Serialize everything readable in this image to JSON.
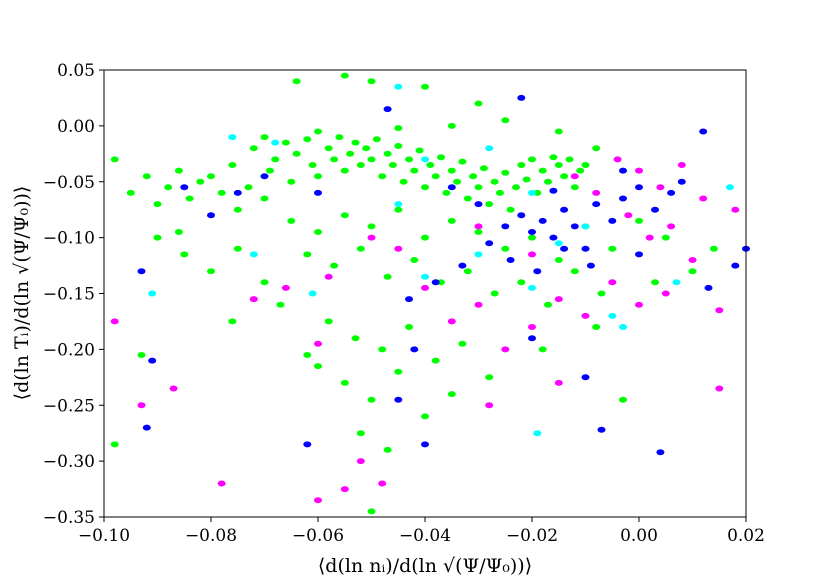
{
  "chart_data": {
    "type": "scatter",
    "title": "",
    "xlabel": "⟨d(ln nᵢ)/d(ln √(Ψ/Ψ₀))⟩",
    "ylabel": "⟨d(ln Tᵢ)/d(ln √(Ψ/Ψ₀))⟩",
    "xlim": [
      -0.1,
      0.02
    ],
    "ylim": [
      -0.35,
      0.05
    ],
    "x_ticks": [
      "−0.10",
      "−0.08",
      "−0.06",
      "−0.04",
      "−0.02",
      "0.00",
      "0.02"
    ],
    "y_ticks": [
      "0.05",
      "0.00",
      "−0.05",
      "−0.10",
      "−0.15",
      "−0.20",
      "−0.25",
      "−0.30",
      "−0.35"
    ],
    "x_tick_values": [
      -0.1,
      -0.08,
      -0.06,
      -0.04,
      -0.02,
      0.0,
      0.02
    ],
    "y_tick_values": [
      0.05,
      0.0,
      -0.05,
      -0.1,
      -0.15,
      -0.2,
      -0.25,
      -0.3,
      -0.35
    ],
    "grid": false,
    "legend": "none",
    "marker": "hexbin-cell",
    "series": [
      {
        "color": "#00ff00",
        "points": [
          [
            -0.098,
            -0.03
          ],
          [
            -0.095,
            -0.06
          ],
          [
            -0.092,
            -0.045
          ],
          [
            -0.09,
            -0.07
          ],
          [
            -0.088,
            -0.055
          ],
          [
            -0.086,
            -0.04
          ],
          [
            -0.084,
            -0.065
          ],
          [
            -0.082,
            -0.05
          ],
          [
            -0.08,
            -0.045
          ],
          [
            -0.078,
            -0.06
          ],
          [
            -0.076,
            -0.035
          ],
          [
            -0.075,
            -0.075
          ],
          [
            -0.073,
            -0.055
          ],
          [
            -0.072,
            -0.02
          ],
          [
            -0.07,
            -0.065
          ],
          [
            -0.069,
            -0.04
          ],
          [
            -0.068,
            -0.03
          ],
          [
            -0.066,
            -0.015
          ],
          [
            -0.065,
            -0.05
          ],
          [
            -0.064,
            -0.025
          ],
          [
            -0.062,
            -0.012
          ],
          [
            -0.061,
            -0.035
          ],
          [
            -0.06,
            -0.045
          ],
          [
            -0.058,
            -0.02
          ],
          [
            -0.057,
            -0.03
          ],
          [
            -0.056,
            -0.01
          ],
          [
            -0.055,
            -0.04
          ],
          [
            -0.054,
            -0.025
          ],
          [
            -0.053,
            -0.015
          ],
          [
            -0.052,
            -0.035
          ],
          [
            -0.051,
            -0.02
          ],
          [
            -0.05,
            -0.03
          ],
          [
            -0.049,
            -0.012
          ],
          [
            -0.048,
            -0.045
          ],
          [
            -0.047,
            -0.025
          ],
          [
            -0.046,
            -0.035
          ],
          [
            -0.045,
            -0.018
          ],
          [
            -0.044,
            -0.05
          ],
          [
            -0.043,
            -0.03
          ],
          [
            -0.042,
            -0.04
          ],
          [
            -0.041,
            -0.022
          ],
          [
            -0.04,
            -0.055
          ],
          [
            -0.039,
            -0.035
          ],
          [
            -0.038,
            -0.045
          ],
          [
            -0.037,
            -0.028
          ],
          [
            -0.036,
            -0.06
          ],
          [
            -0.035,
            -0.04
          ],
          [
            -0.034,
            -0.05
          ],
          [
            -0.033,
            -0.032
          ],
          [
            -0.032,
            -0.065
          ],
          [
            -0.031,
            -0.045
          ],
          [
            -0.03,
            -0.055
          ],
          [
            -0.029,
            -0.038
          ],
          [
            -0.028,
            -0.07
          ],
          [
            -0.027,
            -0.05
          ],
          [
            -0.026,
            -0.06
          ],
          [
            -0.025,
            -0.042
          ],
          [
            -0.024,
            -0.075
          ],
          [
            -0.023,
            -0.055
          ],
          [
            -0.022,
            -0.035
          ],
          [
            -0.021,
            -0.048
          ],
          [
            -0.02,
            -0.03
          ],
          [
            -0.019,
            -0.06
          ],
          [
            -0.018,
            -0.04
          ],
          [
            -0.017,
            -0.05
          ],
          [
            -0.016,
            -0.028
          ],
          [
            -0.015,
            -0.035
          ],
          [
            -0.014,
            -0.045
          ],
          [
            -0.013,
            -0.03
          ],
          [
            -0.012,
            -0.055
          ],
          [
            -0.011,
            -0.04
          ],
          [
            -0.01,
            -0.035
          ],
          [
            -0.065,
            -0.085
          ],
          [
            -0.06,
            -0.095
          ],
          [
            -0.055,
            -0.08
          ],
          [
            -0.05,
            -0.09
          ],
          [
            -0.045,
            -0.075
          ],
          [
            -0.04,
            -0.1
          ],
          [
            -0.035,
            -0.085
          ],
          [
            -0.03,
            -0.095
          ],
          [
            -0.025,
            -0.11
          ],
          [
            -0.02,
            -0.1
          ],
          [
            -0.015,
            -0.12
          ],
          [
            -0.01,
            -0.09
          ],
          [
            -0.062,
            -0.115
          ],
          [
            -0.057,
            -0.125
          ],
          [
            -0.052,
            -0.11
          ],
          [
            -0.047,
            -0.135
          ],
          [
            -0.042,
            -0.12
          ],
          [
            -0.037,
            -0.14
          ],
          [
            -0.032,
            -0.13
          ],
          [
            -0.027,
            -0.15
          ],
          [
            -0.022,
            -0.14
          ],
          [
            -0.017,
            -0.16
          ],
          [
            -0.012,
            -0.13
          ],
          [
            -0.007,
            -0.15
          ],
          [
            -0.09,
            -0.1
          ],
          [
            -0.085,
            -0.115
          ],
          [
            -0.08,
            -0.13
          ],
          [
            -0.075,
            -0.11
          ],
          [
            -0.07,
            -0.14
          ],
          [
            -0.067,
            -0.16
          ],
          [
            -0.058,
            -0.175
          ],
          [
            -0.053,
            -0.19
          ],
          [
            -0.048,
            -0.2
          ],
          [
            -0.043,
            -0.18
          ],
          [
            -0.038,
            -0.21
          ],
          [
            -0.033,
            -0.195
          ],
          [
            -0.06,
            -0.215
          ],
          [
            -0.055,
            -0.23
          ],
          [
            -0.05,
            -0.245
          ],
          [
            -0.045,
            -0.22
          ],
          [
            -0.04,
            -0.26
          ],
          [
            -0.035,
            -0.24
          ],
          [
            -0.052,
            -0.275
          ],
          [
            -0.047,
            -0.29
          ],
          [
            -0.05,
            -0.345
          ],
          [
            -0.098,
            -0.285
          ],
          [
            -0.062,
            -0.205
          ],
          [
            -0.028,
            -0.225
          ],
          [
            -0.005,
            -0.11
          ],
          [
            0.0,
            -0.085
          ],
          [
            0.005,
            -0.1
          ],
          [
            0.01,
            -0.13
          ],
          [
            0.014,
            -0.11
          ],
          [
            0.003,
            -0.14
          ],
          [
            -0.003,
            -0.245
          ],
          [
            -0.064,
            0.04
          ],
          [
            -0.055,
            0.045
          ],
          [
            -0.05,
            0.04
          ],
          [
            -0.04,
            0.035
          ],
          [
            -0.03,
            0.02
          ],
          [
            -0.07,
            -0.01
          ],
          [
            -0.06,
            -0.005
          ],
          [
            -0.045,
            -0.002
          ],
          [
            -0.035,
            0.0
          ],
          [
            -0.025,
            0.005
          ],
          [
            -0.015,
            -0.005
          ],
          [
            -0.008,
            -0.02
          ],
          [
            -0.086,
            -0.095
          ],
          [
            -0.093,
            -0.205
          ],
          [
            -0.076,
            -0.175
          ],
          [
            -0.018,
            -0.2
          ],
          [
            -0.008,
            -0.18
          ]
        ]
      },
      {
        "color": "#0000ff",
        "points": [
          [
            -0.085,
            -0.055
          ],
          [
            -0.08,
            -0.08
          ],
          [
            -0.075,
            -0.06
          ],
          [
            -0.07,
            -0.045
          ],
          [
            -0.047,
            0.015
          ],
          [
            -0.022,
            0.025
          ],
          [
            -0.035,
            -0.055
          ],
          [
            -0.03,
            -0.07
          ],
          [
            -0.025,
            -0.09
          ],
          [
            -0.022,
            -0.08
          ],
          [
            -0.02,
            -0.095
          ],
          [
            -0.018,
            -0.085
          ],
          [
            -0.016,
            -0.1
          ],
          [
            -0.014,
            -0.075
          ],
          [
            -0.012,
            -0.09
          ],
          [
            -0.01,
            -0.11
          ],
          [
            -0.008,
            -0.07
          ],
          [
            -0.005,
            -0.085
          ],
          [
            -0.003,
            -0.065
          ],
          [
            0.0,
            -0.055
          ],
          [
            0.003,
            -0.075
          ],
          [
            0.006,
            -0.06
          ],
          [
            -0.024,
            -0.12
          ],
          [
            -0.019,
            -0.13
          ],
          [
            -0.014,
            -0.11
          ],
          [
            -0.009,
            -0.125
          ],
          [
            -0.028,
            -0.105
          ],
          [
            -0.033,
            -0.125
          ],
          [
            -0.038,
            -0.14
          ],
          [
            -0.043,
            -0.155
          ],
          [
            -0.093,
            -0.13
          ],
          [
            -0.091,
            -0.21
          ],
          [
            -0.092,
            -0.27
          ],
          [
            -0.062,
            -0.285
          ],
          [
            -0.045,
            -0.245
          ],
          [
            -0.04,
            -0.285
          ],
          [
            -0.042,
            -0.2
          ],
          [
            -0.02,
            -0.19
          ],
          [
            -0.01,
            -0.225
          ],
          [
            0.004,
            -0.292
          ],
          [
            -0.007,
            -0.272
          ],
          [
            0.012,
            -0.005
          ],
          [
            0.018,
            -0.125
          ],
          [
            0.02,
            -0.11
          ],
          [
            0.013,
            -0.145
          ],
          [
            0.008,
            -0.05
          ],
          [
            0.0,
            -0.115
          ],
          [
            -0.06,
            -0.06
          ],
          [
            -0.003,
            -0.04
          ],
          [
            -0.016,
            -0.058
          ]
        ]
      },
      {
        "color": "#ff00ff",
        "points": [
          [
            -0.098,
            -0.175
          ],
          [
            -0.093,
            -0.25
          ],
          [
            -0.087,
            -0.235
          ],
          [
            -0.078,
            -0.32
          ],
          [
            -0.06,
            -0.335
          ],
          [
            -0.055,
            -0.325
          ],
          [
            -0.052,
            -0.3
          ],
          [
            -0.048,
            -0.32
          ],
          [
            -0.045,
            -0.11
          ],
          [
            -0.04,
            -0.145
          ],
          [
            -0.035,
            -0.175
          ],
          [
            -0.03,
            -0.16
          ],
          [
            -0.025,
            -0.2
          ],
          [
            -0.02,
            -0.18
          ],
          [
            -0.015,
            -0.155
          ],
          [
            -0.01,
            -0.17
          ],
          [
            -0.005,
            -0.14
          ],
          [
            0.0,
            -0.16
          ],
          [
            0.005,
            -0.15
          ],
          [
            0.01,
            -0.12
          ],
          [
            0.015,
            -0.165
          ],
          [
            -0.012,
            -0.045
          ],
          [
            -0.008,
            -0.06
          ],
          [
            -0.004,
            -0.03
          ],
          [
            0.0,
            -0.04
          ],
          [
            0.004,
            -0.055
          ],
          [
            0.008,
            -0.035
          ],
          [
            0.012,
            -0.065
          ],
          [
            -0.002,
            -0.08
          ],
          [
            0.002,
            -0.1
          ],
          [
            0.006,
            -0.09
          ],
          [
            -0.02,
            -0.115
          ],
          [
            -0.03,
            -0.09
          ],
          [
            -0.05,
            -0.1
          ],
          [
            -0.058,
            -0.135
          ],
          [
            -0.06,
            -0.195
          ],
          [
            -0.066,
            -0.145
          ],
          [
            -0.072,
            -0.155
          ],
          [
            -0.028,
            -0.25
          ],
          [
            -0.015,
            -0.23
          ],
          [
            0.015,
            -0.235
          ],
          [
            0.018,
            -0.075
          ]
        ]
      },
      {
        "color": "#00ffff",
        "points": [
          [
            -0.045,
            0.035
          ],
          [
            -0.076,
            -0.01
          ],
          [
            -0.068,
            -0.015
          ],
          [
            -0.04,
            -0.03
          ],
          [
            -0.028,
            -0.02
          ],
          [
            -0.02,
            -0.06
          ],
          [
            -0.045,
            -0.07
          ],
          [
            -0.091,
            -0.15
          ],
          [
            -0.072,
            -0.115
          ],
          [
            -0.061,
            -0.15
          ],
          [
            -0.04,
            -0.135
          ],
          [
            -0.03,
            -0.115
          ],
          [
            -0.02,
            -0.145
          ],
          [
            -0.015,
            -0.105
          ],
          [
            -0.005,
            -0.17
          ],
          [
            -0.003,
            -0.18
          ],
          [
            0.007,
            -0.14
          ],
          [
            -0.019,
            -0.275
          ],
          [
            0.017,
            -0.055
          ],
          [
            -0.01,
            -0.09
          ]
        ]
      }
    ]
  }
}
